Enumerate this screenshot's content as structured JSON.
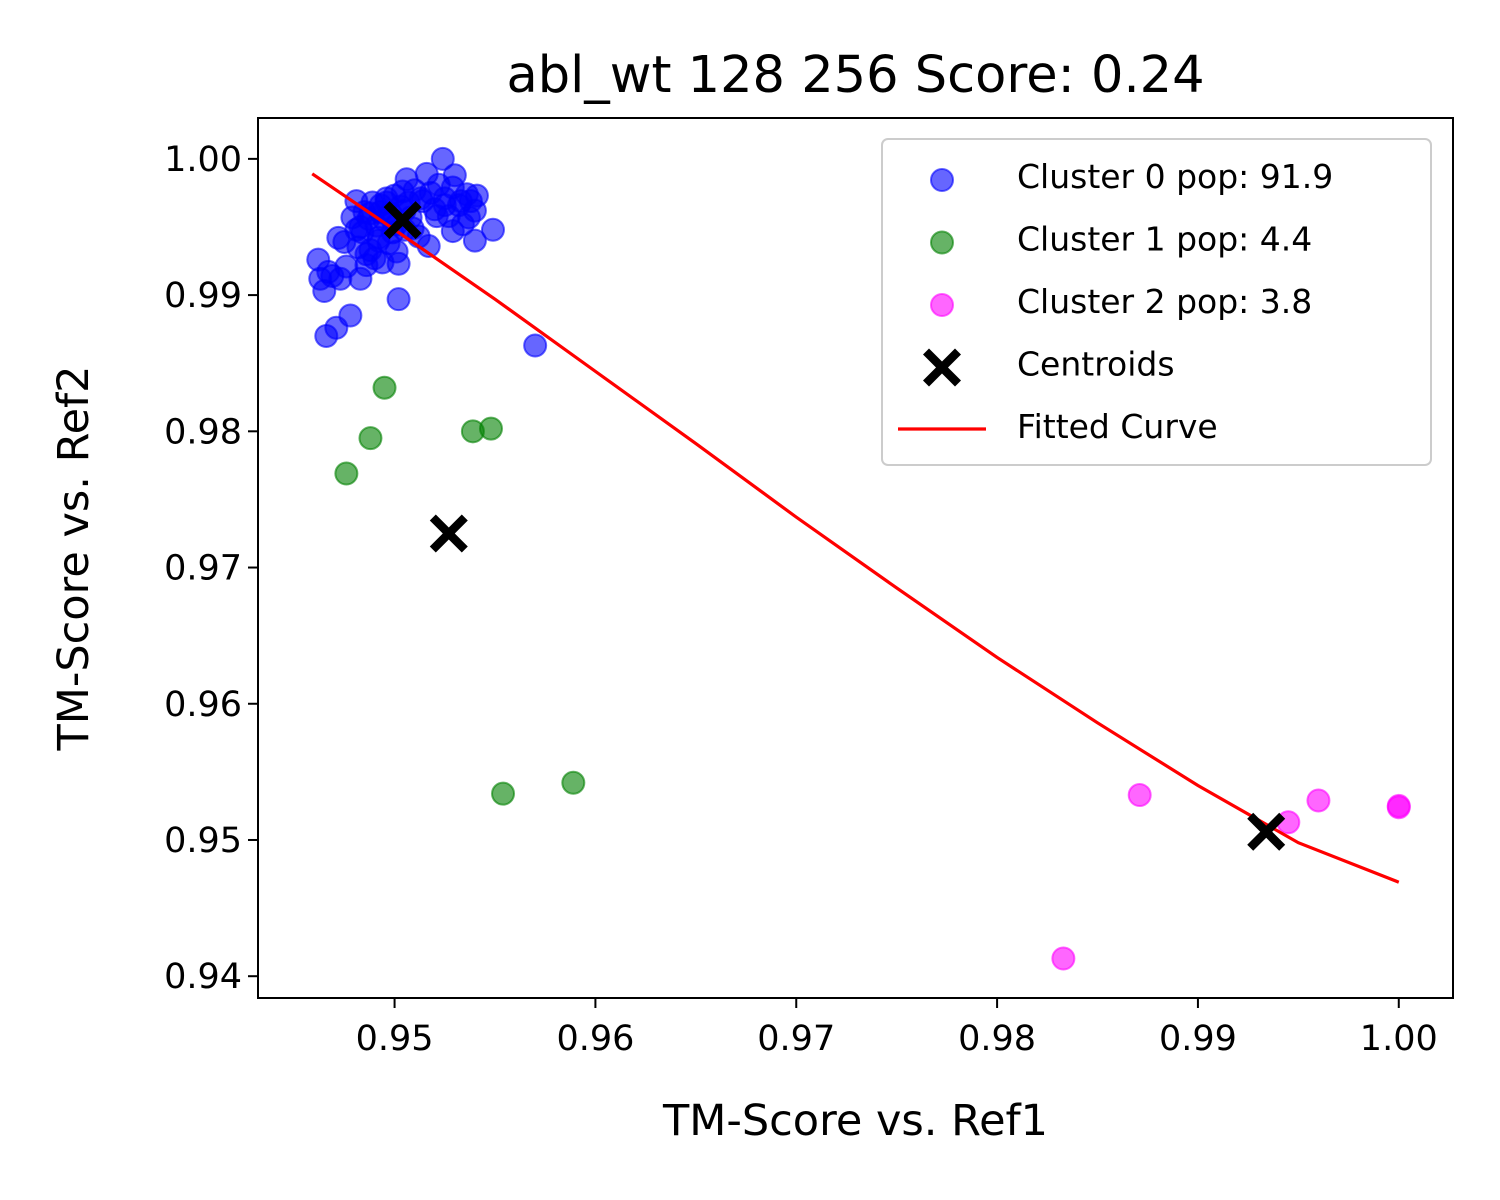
{
  "chart_data": {
    "type": "scatter",
    "title": "abl_wt 128 256 Score: 0.24",
    "xlabel": "TM-Score vs. Ref1",
    "ylabel": "TM-Score vs. Ref2",
    "xlim": [
      0.9432,
      1.0027
    ],
    "ylim": [
      0.9384,
      1.003
    ],
    "xticks": [
      0.95,
      0.96,
      0.97,
      0.98,
      0.99,
      1.0
    ],
    "xtick_labels": [
      "0.95",
      "0.96",
      "0.97",
      "0.98",
      "0.99",
      "1.00"
    ],
    "yticks": [
      0.94,
      0.95,
      0.96,
      0.97,
      0.98,
      0.99,
      1.0
    ],
    "ytick_labels": [
      "0.94",
      "0.95",
      "0.96",
      "0.97",
      "0.98",
      "0.99",
      "1.00"
    ],
    "grid": false,
    "legend_position": "top-right",
    "series": [
      {
        "name": "Cluster 0 pop: 91.9",
        "kind": "scatter",
        "color": "#0000ff",
        "x": [
          0.9462,
          0.9463,
          0.9465,
          0.9466,
          0.9469,
          0.9471,
          0.9473,
          0.9475,
          0.9476,
          0.9478,
          0.9479,
          0.9481,
          0.9482,
          0.9483,
          0.9484,
          0.9485,
          0.9486,
          0.9487,
          0.9488,
          0.9489,
          0.949,
          0.9491,
          0.9492,
          0.9493,
          0.9494,
          0.9495,
          0.9496,
          0.9497,
          0.9498,
          0.9499,
          0.95,
          0.9501,
          0.9502,
          0.9503,
          0.9504,
          0.9505,
          0.9506,
          0.9507,
          0.9508,
          0.951,
          0.9512,
          0.9514,
          0.9516,
          0.9518,
          0.952,
          0.9522,
          0.9524,
          0.9525,
          0.9527,
          0.9529,
          0.953,
          0.9532,
          0.9534,
          0.9536,
          0.9538,
          0.954,
          0.9541,
          0.9483,
          0.9488,
          0.9492,
          0.9496,
          0.9501,
          0.9505,
          0.9509,
          0.9513,
          0.9517,
          0.9521,
          0.9525,
          0.9529,
          0.9533,
          0.9537,
          0.954,
          0.9549,
          0.957,
          0.9502,
          0.9481,
          0.9472,
          0.9467,
          0.9486,
          0.9493,
          0.9499
        ],
        "y": [
          0.9926,
          0.9912,
          0.9903,
          0.987,
          0.9914,
          0.9876,
          0.9912,
          0.9939,
          0.9921,
          0.9885,
          0.9957,
          0.9969,
          0.9935,
          0.9912,
          0.9946,
          0.9961,
          0.9922,
          0.9956,
          0.9933,
          0.9968,
          0.9927,
          0.9951,
          0.994,
          0.9966,
          0.9924,
          0.9955,
          0.9971,
          0.9938,
          0.996,
          0.9946,
          0.9973,
          0.9952,
          0.9923,
          0.9965,
          0.9976,
          0.9948,
          0.9985,
          0.9968,
          0.9957,
          0.9977,
          0.9943,
          0.9969,
          0.9989,
          0.9975,
          0.9963,
          0.9981,
          1.0,
          0.9971,
          0.9958,
          0.9979,
          0.9988,
          0.9966,
          0.9952,
          0.9974,
          0.9969,
          0.9962,
          0.9973,
          0.995,
          0.996,
          0.9942,
          0.9968,
          0.9932,
          0.9962,
          0.9949,
          0.9971,
          0.9936,
          0.9958,
          0.9966,
          0.9947,
          0.9969,
          0.9957,
          0.994,
          0.9948,
          0.9863,
          0.9897,
          0.9948,
          0.9942,
          0.9917,
          0.993,
          0.9961,
          0.9955
        ]
      },
      {
        "name": "Cluster 1 pop: 4.4",
        "kind": "scatter",
        "color": "#008000",
        "x": [
          0.9476,
          0.9488,
          0.9495,
          0.9539,
          0.9548,
          0.9554,
          0.9589
        ],
        "y": [
          0.9769,
          0.9795,
          0.9832,
          0.98,
          0.9802,
          0.9534,
          0.9542
        ]
      },
      {
        "name": "Cluster 2 pop: 3.8",
        "kind": "scatter",
        "color": "#ff00ff",
        "x": [
          0.9833,
          0.9871,
          0.9945,
          0.996,
          1.0,
          1.0
        ],
        "y": [
          0.9413,
          0.9533,
          0.9513,
          0.9529,
          0.9524,
          0.9525
        ]
      },
      {
        "name": "Centroids",
        "kind": "marker-x",
        "color": "#000000",
        "x": [
          0.9504,
          0.9527,
          0.9934
        ],
        "y": [
          0.9955,
          0.9725,
          0.9506
        ]
      },
      {
        "name": "Fitted Curve",
        "kind": "line",
        "color": "#ff0000",
        "x": [
          0.9459,
          0.95,
          0.955,
          0.96,
          0.965,
          0.97,
          0.975,
          0.98,
          0.985,
          0.99,
          0.995,
          1.0
        ],
        "y": [
          0.9989,
          0.9948,
          0.9897,
          0.9844,
          0.9791,
          0.9737,
          0.9685,
          0.9634,
          0.9586,
          0.954,
          0.9498,
          0.9469
        ]
      }
    ]
  }
}
